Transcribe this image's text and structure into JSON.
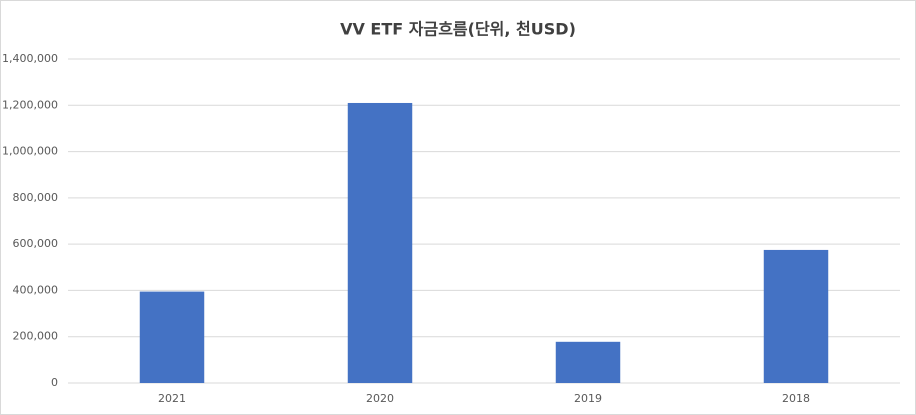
{
  "chart_data": {
    "type": "bar",
    "title": "VV ETF 자금흐름(단위, 천USD)",
    "categories": [
      "2021",
      "2020",
      "2019",
      "2018"
    ],
    "values": [
      395000,
      1210000,
      178000,
      575000
    ],
    "color": "#4472c4",
    "ylim": [
      0,
      1400000
    ],
    "yticks": [
      0,
      {
        "value": 200000,
        "label": "200,000"
      },
      {
        "value": 400000,
        "label": "400,000"
      },
      {
        "value": 600000,
        "label": "600,000"
      },
      {
        "value": 800000,
        "label": "800,000"
      },
      {
        "value": 1000000,
        "label": "1,000,000"
      },
      {
        "value": 1200000,
        "label": "1,200,000"
      },
      {
        "value": 1400000,
        "label": "1,400,000"
      }
    ],
    "grid": true
  }
}
